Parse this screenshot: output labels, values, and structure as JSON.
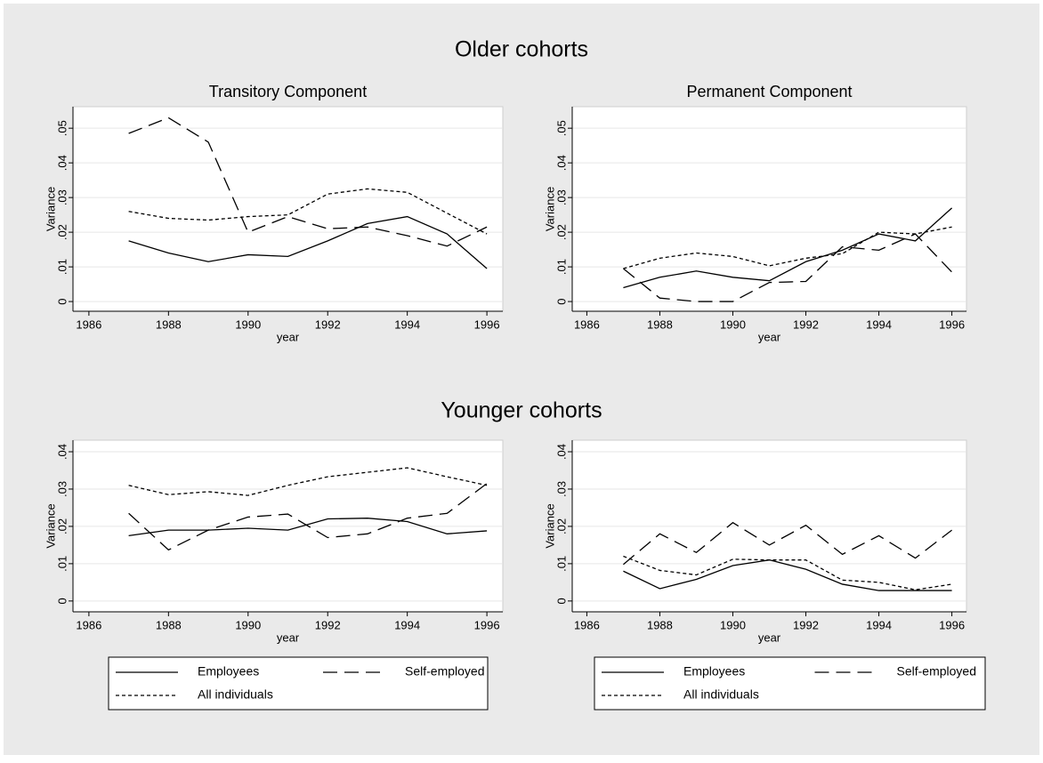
{
  "chart_data": [
    {
      "type": "line",
      "supertitle": "Older cohorts",
      "title": "Transitory Component",
      "xlabel": "year",
      "ylabel": "Variance",
      "x": [
        1987,
        1988,
        1989,
        1990,
        1991,
        1992,
        1993,
        1994,
        1995,
        1996
      ],
      "xlim": [
        1985.6,
        1996.4
      ],
      "xticks": [
        1986,
        1988,
        1990,
        1992,
        1994,
        1996
      ],
      "ylim": [
        -0.0028,
        0.0562
      ],
      "yticks": [
        0,
        {
          "value": 0.01,
          "label": ".01"
        },
        {
          "value": 0.02,
          "label": ".02"
        },
        {
          "value": 0.03,
          "label": ".03"
        },
        {
          "value": 0.04,
          "label": ".04"
        },
        {
          "value": 0.05,
          "label": ".05"
        }
      ],
      "grid": true,
      "series": [
        {
          "color": "#000000",
          "dash": "solid",
          "values": [
            0.0175,
            0.014,
            0.0115,
            0.0135,
            0.013,
            0.0175,
            0.0225,
            0.0245,
            0.0195,
            0.0095
          ]
        },
        {
          "color": "#000000",
          "dash": "long",
          "values": [
            0.0485,
            0.053,
            0.046,
            0.02,
            0.0245,
            0.021,
            0.0215,
            0.019,
            0.016,
            0.0215
          ]
        },
        {
          "color": "#000000",
          "dash": "short",
          "values": [
            0.026,
            0.024,
            0.0235,
            0.0245,
            0.025,
            0.031,
            0.0325,
            0.0315,
            0.0255,
            0.0195
          ]
        }
      ]
    },
    {
      "type": "line",
      "title": "Permanent Component",
      "xlabel": "year",
      "ylabel": "Variance",
      "x": [
        1987,
        1988,
        1989,
        1990,
        1991,
        1992,
        1993,
        1994,
        1995,
        1996
      ],
      "xlim": [
        1985.6,
        1996.4
      ],
      "xticks": [
        1986,
        1988,
        1990,
        1992,
        1994,
        1996
      ],
      "ylim": [
        -0.0028,
        0.0562
      ],
      "yticks": [
        0,
        {
          "value": 0.01,
          "label": ".01"
        },
        {
          "value": 0.02,
          "label": ".02"
        },
        {
          "value": 0.03,
          "label": ".03"
        },
        {
          "value": 0.04,
          "label": ".04"
        },
        {
          "value": 0.05,
          "label": ".05"
        }
      ],
      "grid": true,
      "series": [
        {
          "color": "#000000",
          "dash": "solid",
          "values": [
            0.004,
            0.007,
            0.0088,
            0.007,
            0.006,
            0.0115,
            0.0148,
            0.0195,
            0.0175,
            0.027
          ]
        },
        {
          "color": "#000000",
          "dash": "long",
          "values": [
            0.0095,
            0.001,
            0,
            0,
            0.0055,
            0.0058,
            0.0158,
            0.0148,
            0.0195,
            0.0085
          ]
        },
        {
          "color": "#000000",
          "dash": "short",
          "values": [
            0.0095,
            0.0125,
            0.014,
            0.013,
            0.0103,
            0.0125,
            0.0138,
            0.02,
            0.0195,
            0.0215
          ]
        }
      ]
    },
    {
      "type": "line",
      "supertitle": "Younger cohorts",
      "xlabel": "year",
      "ylabel": "Variance",
      "legend": "bottom",
      "x": [
        1987,
        1988,
        1989,
        1990,
        1991,
        1992,
        1993,
        1994,
        1995,
        1996
      ],
      "xlim": [
        1985.6,
        1996.4
      ],
      "xticks": [
        1986,
        1988,
        1990,
        1992,
        1994,
        1996
      ],
      "ylim": [
        -0.0029,
        0.0431
      ],
      "yticks": [
        0,
        {
          "value": 0.01,
          "label": ".01"
        },
        {
          "value": 0.02,
          "label": ".02"
        },
        {
          "value": 0.03,
          "label": ".03"
        },
        {
          "value": 0.04,
          "label": ".04"
        }
      ],
      "grid": true,
      "series": [
        {
          "name": "Employees",
          "color": "#000000",
          "dash": "solid",
          "values": [
            0.0175,
            0.019,
            0.019,
            0.0195,
            0.019,
            0.022,
            0.0222,
            0.0213,
            0.018,
            0.0188
          ]
        },
        {
          "name": "Self-employed",
          "color": "#000000",
          "dash": "long",
          "values": [
            0.0235,
            0.0137,
            0.019,
            0.0225,
            0.0233,
            0.017,
            0.018,
            0.0222,
            0.0235,
            0.0315
          ]
        },
        {
          "name": "All individuals",
          "color": "#000000",
          "dash": "short",
          "values": [
            0.031,
            0.0285,
            0.0293,
            0.0283,
            0.031,
            0.0333,
            0.0345,
            0.0357,
            0.0333,
            0.031
          ]
        }
      ]
    },
    {
      "type": "line",
      "xlabel": "year",
      "ylabel": "Variance",
      "legend": "bottom",
      "x": [
        1987,
        1988,
        1989,
        1990,
        1991,
        1992,
        1993,
        1994,
        1995,
        1996
      ],
      "xlim": [
        1985.6,
        1996.4
      ],
      "xticks": [
        1986,
        1988,
        1990,
        1992,
        1994,
        1996
      ],
      "ylim": [
        -0.0029,
        0.0431
      ],
      "yticks": [
        0,
        {
          "value": 0.01,
          "label": ".01"
        },
        {
          "value": 0.02,
          "label": ".02"
        },
        {
          "value": 0.03,
          "label": ".03"
        },
        {
          "value": 0.04,
          "label": ".04"
        }
      ],
      "grid": true,
      "series": [
        {
          "name": "Employees",
          "color": "#000000",
          "dash": "solid",
          "values": [
            0.008,
            0.0033,
            0.0058,
            0.0095,
            0.011,
            0.0085,
            0.0045,
            0.0028,
            0.0028,
            0.0028
          ]
        },
        {
          "name": "Self-employed",
          "color": "#000000",
          "dash": "long",
          "values": [
            0.0098,
            0.018,
            0.013,
            0.021,
            0.015,
            0.0203,
            0.0125,
            0.0175,
            0.0115,
            0.019
          ]
        },
        {
          "name": "All individuals",
          "color": "#000000",
          "dash": "short",
          "values": [
            0.012,
            0.0082,
            0.007,
            0.0112,
            0.011,
            0.011,
            0.0056,
            0.005,
            0.003,
            0.0045
          ]
        }
      ]
    }
  ]
}
